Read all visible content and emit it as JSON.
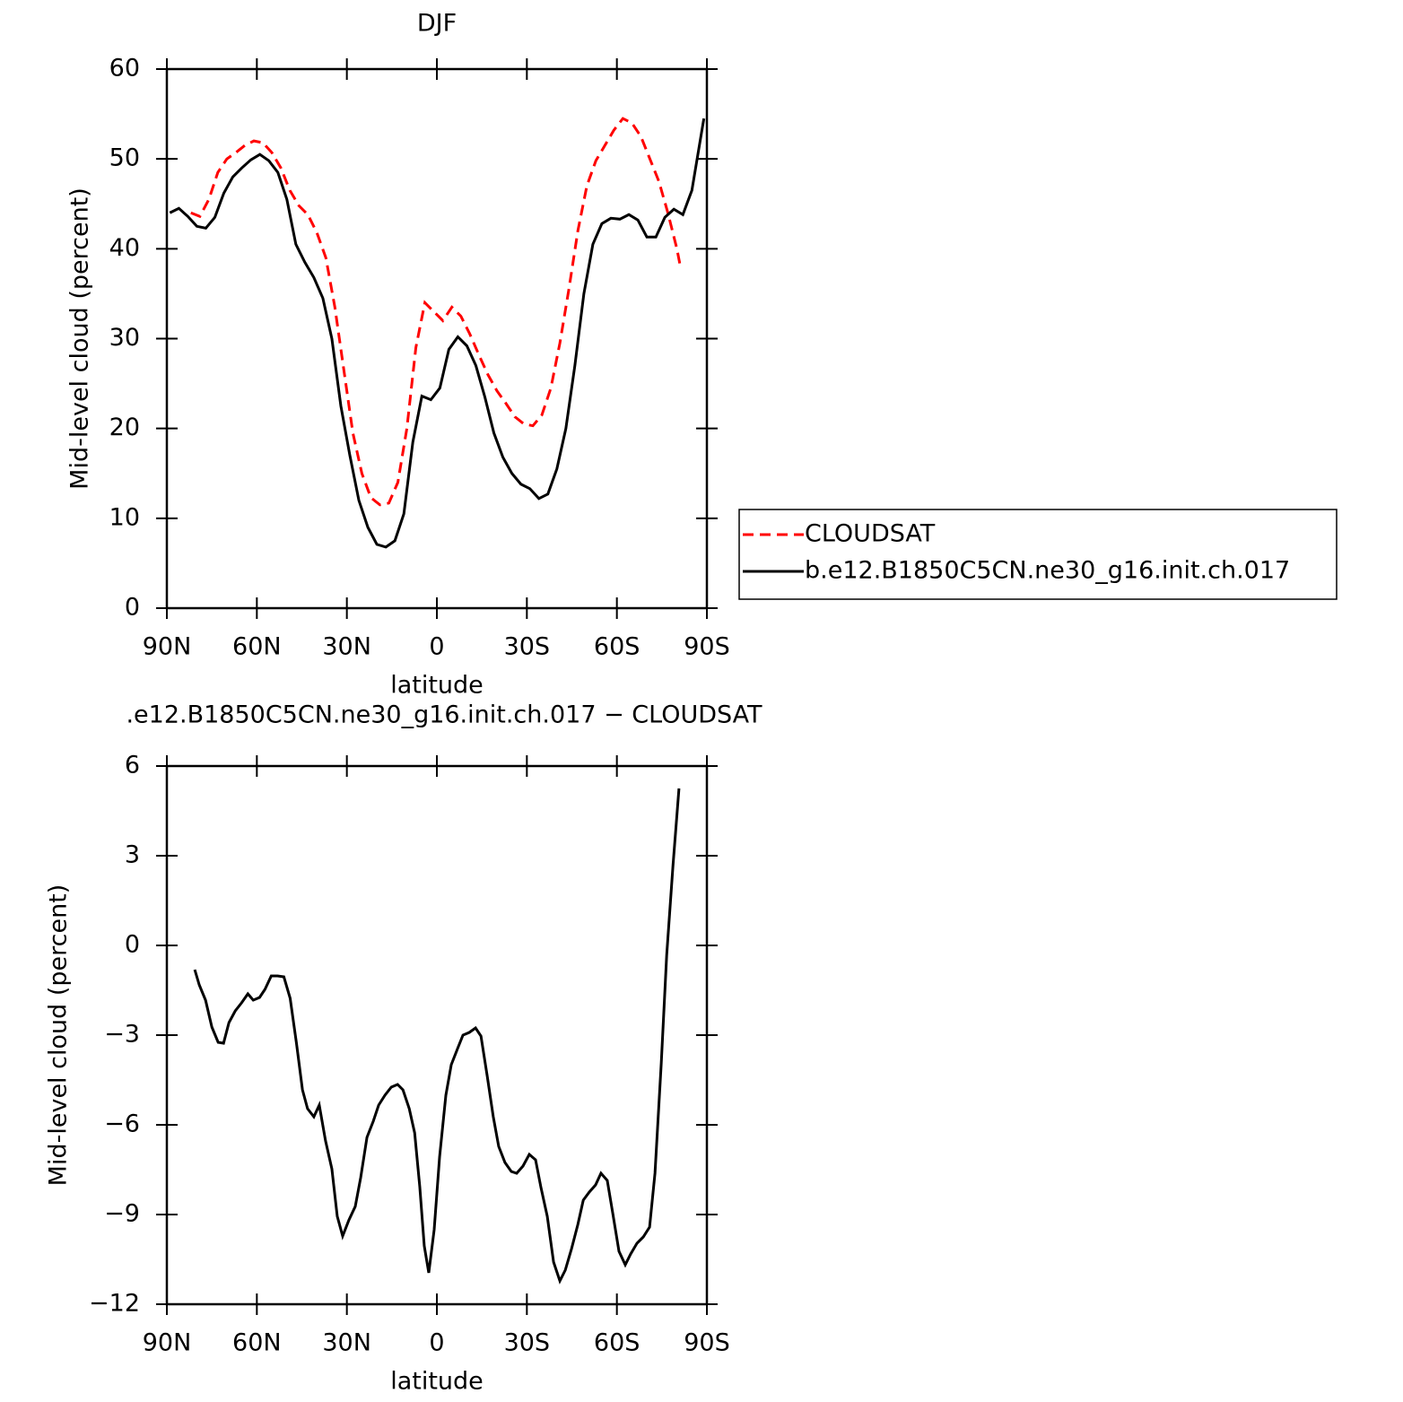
{
  "chart_data": [
    {
      "type": "line",
      "title": "DJF",
      "xlabel": "latitude",
      "ylabel": "Mid-level cloud (percent)",
      "xlim": [
        90,
        -90
      ],
      "xticks": [
        {
          "value": 90,
          "label": "90N"
        },
        {
          "value": 60,
          "label": "60N"
        },
        {
          "value": 30,
          "label": "30N"
        },
        0,
        {
          "value": -30,
          "label": "30S"
        },
        {
          "value": -60,
          "label": "60S"
        },
        {
          "value": -90,
          "label": "90S"
        }
      ],
      "ylim": [
        0,
        60
      ],
      "yticks": [
        0,
        10,
        20,
        30,
        40,
        50,
        60
      ],
      "legend": "right",
      "series": [
        {
          "name": "CLOUDSAT",
          "color": "#ff0000",
          "linestyle": "dashed",
          "x": [
            82,
            79,
            76,
            73,
            70,
            67,
            64,
            61,
            58,
            55,
            52,
            49,
            46,
            43,
            40,
            37,
            34,
            31,
            28,
            25,
            22,
            19,
            16,
            13,
            10,
            7,
            4,
            1,
            -2,
            -5,
            -8,
            -11,
            -14,
            -17,
            -20,
            -23,
            -26,
            -29,
            -32,
            -35,
            -38,
            -41,
            -44,
            -47,
            -50,
            -53,
            -56,
            -59,
            -62,
            -65,
            -68,
            -71,
            -74,
            -77,
            -80,
            -81
          ],
          "values": [
            44.0,
            43.6,
            45.5,
            48.5,
            50.0,
            50.7,
            51.5,
            52.0,
            51.8,
            50.7,
            49.0,
            46.5,
            44.8,
            43.8,
            41.8,
            39.0,
            33.5,
            26.5,
            19.5,
            15.0,
            12.3,
            11.5,
            11.7,
            14.0,
            20.0,
            29.0,
            34.0,
            33.0,
            32.0,
            33.5,
            32.5,
            30.5,
            28.2,
            26.0,
            24.2,
            22.8,
            21.3,
            20.5,
            20.3,
            21.5,
            24.5,
            29.5,
            35.5,
            42.0,
            47.0,
            49.8,
            51.5,
            53.2,
            54.5,
            54.0,
            52.5,
            50.0,
            47.5,
            44.0,
            40.0,
            38.3
          ]
        },
        {
          "name": "b.e12.B1850C5CN.ne30_g16.init.ch.017",
          "color": "#000000",
          "linestyle": "solid",
          "x": [
            89,
            86,
            83,
            80,
            77,
            74,
            71,
            68,
            65,
            62,
            59,
            56,
            53,
            50,
            47,
            44,
            41,
            38,
            35,
            32,
            29,
            26,
            23,
            20,
            17,
            14,
            11,
            8,
            5,
            2,
            -1,
            -4,
            -7,
            -10,
            -13,
            -16,
            -19,
            -22,
            -25,
            -28,
            -31,
            -34,
            -37,
            -40,
            -43,
            -46,
            -49,
            -52,
            -55,
            -58,
            -61,
            -64,
            -67,
            -70,
            -73,
            -76,
            -79,
            -82,
            -85,
            -88,
            -89
          ],
          "values": [
            44.0,
            44.5,
            43.6,
            42.5,
            42.3,
            43.5,
            46.2,
            48.0,
            49.0,
            49.9,
            50.5,
            49.8,
            48.5,
            45.5,
            40.5,
            38.5,
            36.8,
            34.5,
            30.0,
            22.5,
            17.0,
            12.0,
            9.0,
            7.1,
            6.8,
            7.5,
            10.5,
            18.5,
            23.6,
            23.2,
            24.5,
            28.8,
            30.2,
            29.2,
            27.0,
            23.5,
            19.5,
            16.8,
            15.0,
            13.8,
            13.3,
            12.2,
            12.7,
            15.5,
            20.0,
            27.0,
            35.0,
            40.5,
            42.8,
            43.4,
            43.3,
            43.8,
            43.2,
            41.3,
            41.3,
            43.5,
            44.4,
            43.8,
            46.5,
            52.5,
            54.5
          ]
        }
      ]
    },
    {
      "type": "line",
      "title": ".e12.B1850C5CN.ne30_g16.init.ch.017 − CLOUDSAT",
      "xlabel": "latitude",
      "ylabel": "Mid-level cloud (percent)",
      "xlim": [
        90,
        -90
      ],
      "xticks": [
        {
          "value": 90,
          "label": "90N"
        },
        {
          "value": 60,
          "label": "60N"
        },
        {
          "value": 30,
          "label": "30N"
        },
        0,
        {
          "value": -30,
          "label": "30S"
        },
        {
          "value": -60,
          "label": "60S"
        },
        {
          "value": -90,
          "label": "90S"
        }
      ],
      "ylim": [
        -12,
        6
      ],
      "yticks": [
        {
          "value": -12,
          "label": "−12"
        },
        {
          "value": -9,
          "label": "−9"
        },
        {
          "value": -6,
          "label": "−6"
        },
        {
          "value": -3,
          "label": "−3"
        },
        0,
        3,
        6
      ],
      "series": [
        {
          "color": "#000000",
          "linestyle": "solid",
          "x": [
            80.7,
            79.2,
            77.1,
            75.0,
            72.9,
            71.1,
            69.3,
            67.2,
            65.1,
            63.0,
            61.2,
            59.1,
            57.3,
            55.2,
            53.1,
            51.0,
            48.9,
            46.8,
            44.8,
            43.1,
            41.0,
            39.2,
            37.1,
            35.0,
            33.2,
            31.4,
            29.3,
            27.2,
            25.4,
            23.3,
            21.2,
            19.4,
            17.3,
            15.2,
            13.1,
            11.3,
            9.2,
            7.4,
            5.7,
            4.2,
            2.7,
            0.9,
            -0.9,
            -3.0,
            -4.8,
            -6.9,
            -8.7,
            -10.8,
            -12.9,
            -14.7,
            -16.8,
            -18.8,
            -20.6,
            -22.7,
            -24.8,
            -26.6,
            -28.7,
            -30.8,
            -32.9,
            -34.7,
            -36.8,
            -38.9,
            -41.0,
            -42.8,
            -44.9,
            -47.0,
            -48.8,
            -50.8,
            -52.9,
            -54.7,
            -56.8,
            -58.6,
            -60.7,
            -62.8,
            -64.6,
            -66.7,
            -68.8,
            -70.9,
            -72.7,
            -74.8,
            -76.6,
            -78.7,
            -80.7
          ],
          "values": [
            -0.81,
            -1.32,
            -1.83,
            -2.73,
            -3.24,
            -3.27,
            -2.58,
            -2.19,
            -1.92,
            -1.62,
            -1.83,
            -1.74,
            -1.47,
            -1.02,
            -1.02,
            -1.05,
            -1.77,
            -3.27,
            -4.83,
            -5.46,
            -5.73,
            -5.34,
            -6.54,
            -7.47,
            -9.06,
            -9.72,
            -9.18,
            -8.73,
            -7.77,
            -6.42,
            -5.88,
            -5.34,
            -5.01,
            -4.74,
            -4.65,
            -4.83,
            -5.46,
            -6.27,
            -8.07,
            -10.05,
            -10.95,
            -9.51,
            -7.08,
            -5.01,
            -3.99,
            -3.45,
            -3.0,
            -2.91,
            -2.76,
            -3.03,
            -4.38,
            -5.73,
            -6.72,
            -7.26,
            -7.56,
            -7.62,
            -7.38,
            -6.99,
            -7.17,
            -8.1,
            -9.06,
            -10.59,
            -11.22,
            -10.86,
            -10.14,
            -9.33,
            -8.52,
            -8.25,
            -8.01,
            -7.62,
            -7.86,
            -8.94,
            -10.23,
            -10.68,
            -10.32,
            -9.96,
            -9.75,
            -9.42,
            -7.62,
            -3.93,
            -0.33,
            2.67,
            5.25
          ]
        }
      ]
    }
  ]
}
